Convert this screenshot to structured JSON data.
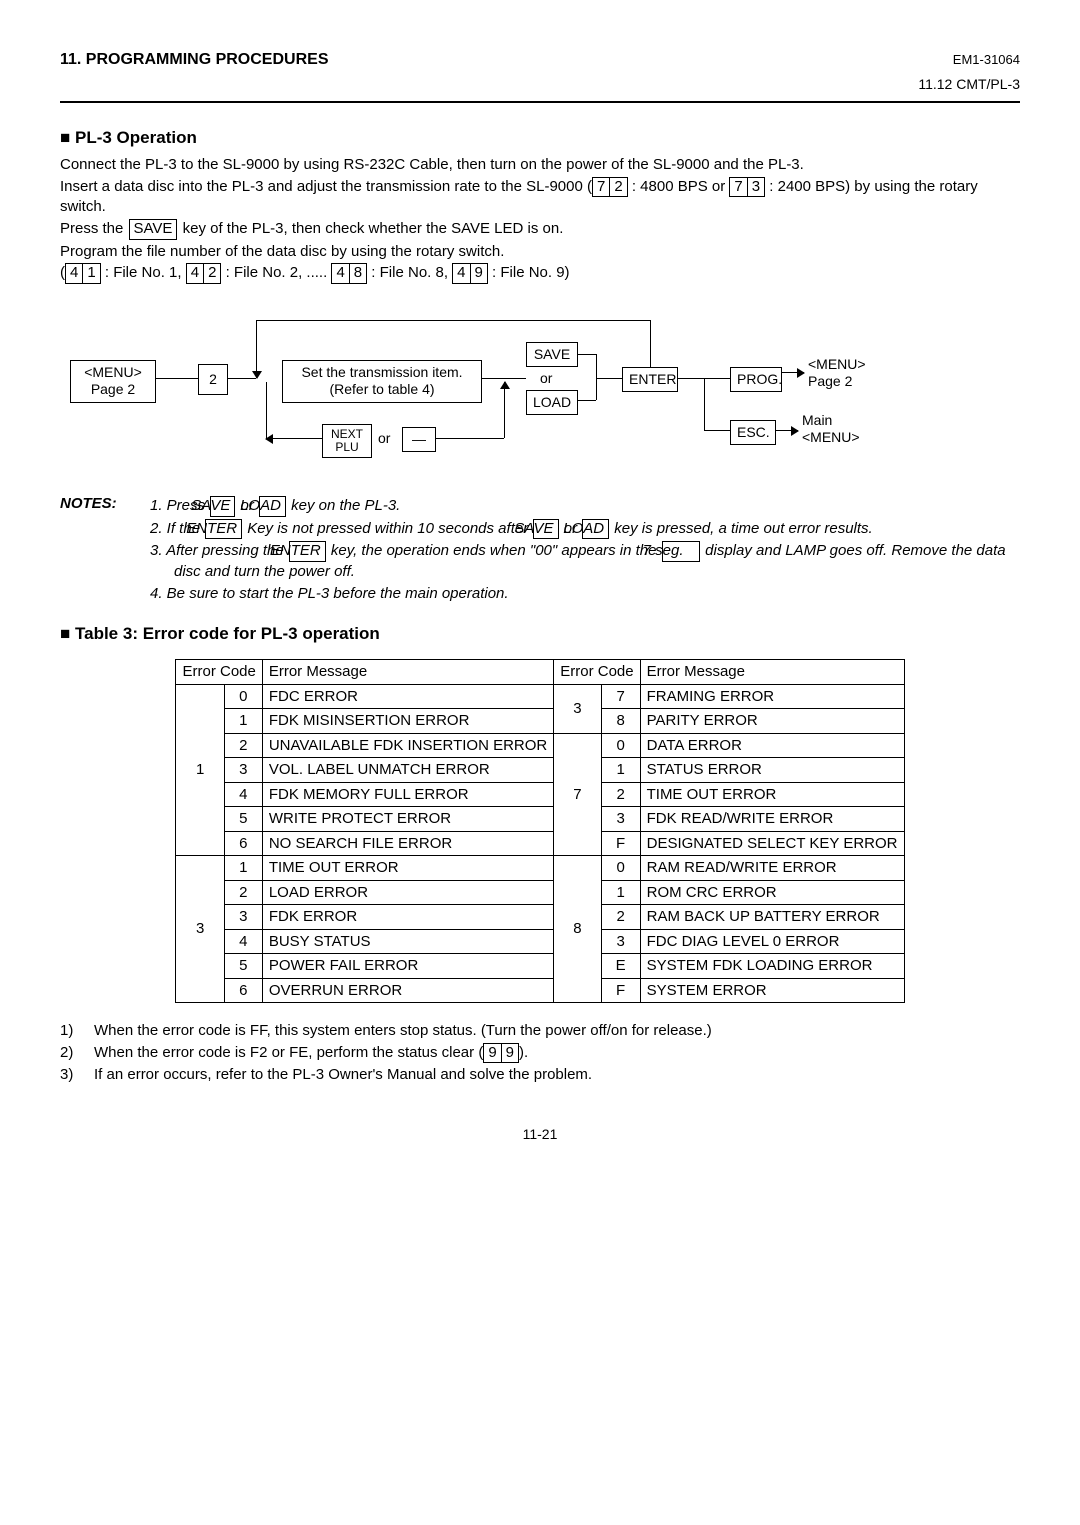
{
  "header": {
    "left": "11. PROGRAMMING PROCEDURES",
    "doc_no": "EM1-31064",
    "sub": "11.12 CMT/PL-3"
  },
  "op_title": "PL-3 Operation",
  "op": {
    "p1": "Connect the PL-3 to the SL-9000 by using RS-232C Cable, then turn on the power of the SL-9000 and the PL-3.",
    "p2a": "Insert a data disc into the PL-3 and adjust the transmission rate to the SL-9000 (",
    "p2_72": [
      "7",
      "2"
    ],
    "p2b": " :  4800 BPS or ",
    "p2_73": [
      "7",
      "3"
    ],
    "p2c": " :  2400 BPS) by using the rotary switch.",
    "p3a": "Press the ",
    "p3_save": " SAVE ",
    "p3b": " key of the PL-3, then check whether the SAVE LED is on.",
    "p4": "Program the file number of the data disc by using the rotary switch.",
    "p5a": "(",
    "p5_41": [
      "4",
      "1"
    ],
    "p5b": " :  File No. 1, ",
    "p5_42": [
      "4",
      "2"
    ],
    "p5c": " :  File No. 2, ..... ",
    "p5_48": [
      "4",
      "8"
    ],
    "p5d": " :  File No. 8, ",
    "p5_49": [
      "4",
      "9"
    ],
    "p5e": " :  File No. 9)"
  },
  "diagram": {
    "menu_p2": "<MENU>\nPage 2",
    "two": "2",
    "set_item": "Set the transmission item.\n(Refer to table 4)",
    "save": "SAVE",
    "or": "or",
    "load": "LOAD",
    "enter": "ENTER",
    "prog": "PROG.",
    "esc": "ESC.",
    "menu_p2r": "<MENU>\nPage 2",
    "main_menu": "Main\n<MENU>",
    "next_plu": "NEXT\nPLU",
    "dash": "—"
  },
  "notes_label": "NOTES:",
  "notes": {
    "n1a": "1.  Press ",
    "n1_save": "SAVE",
    "n1b": " or ",
    "n1_load": "LOAD",
    "n1c": " key on the PL-3.",
    "n2a": "2.  If the ",
    "n2_enter": "ENTER",
    "n2b": " Key is not pressed within 10 seconds after ",
    "n2_save": "SAVE",
    "n2c": " or ",
    "n2_load": "LOAD",
    "n2d": " key is pressed, a time out error results.",
    "n3a": "3.  After pressing the ",
    "n3_enter": "ENTER",
    "n3b": " key, the operation ends when \"00\" appears in the ",
    "n3_7seg": "7 seg.",
    "n3c": " display and LAMP goes off.  Remove the data disc and turn the power off.",
    "n4": "4.  Be sure to start the PL-3 before the main operation."
  },
  "table_title": "Table 3:  Error code for PL-3 operation",
  "table": {
    "hdr_code": "Error Code",
    "hdr_msg": "Error Message",
    "left": [
      {
        "g": "1",
        "rows": [
          [
            "0",
            "FDC ERROR"
          ],
          [
            "1",
            "FDK MISINSERTION ERROR"
          ],
          [
            "2",
            "UNAVAILABLE FDK INSERTION ERROR"
          ],
          [
            "3",
            "VOL. LABEL UNMATCH ERROR"
          ],
          [
            "4",
            "FDK MEMORY FULL ERROR"
          ],
          [
            "5",
            "WRITE PROTECT ERROR"
          ],
          [
            "6",
            "NO SEARCH FILE ERROR"
          ]
        ]
      },
      {
        "g": "3",
        "rows": [
          [
            "1",
            "TIME OUT ERROR"
          ],
          [
            "2",
            "LOAD ERROR"
          ],
          [
            "3",
            "FDK ERROR"
          ],
          [
            "4",
            "BUSY STATUS"
          ],
          [
            "5",
            "POWER FAIL ERROR"
          ],
          [
            "6",
            "OVERRUN ERROR"
          ]
        ]
      }
    ],
    "right": [
      {
        "g": "3",
        "rows": [
          [
            "7",
            "FRAMING ERROR"
          ],
          [
            "8",
            "PARITY ERROR"
          ]
        ]
      },
      {
        "g": "7",
        "rows": [
          [
            "0",
            "DATA ERROR"
          ],
          [
            "1",
            "STATUS ERROR"
          ],
          [
            "2",
            "TIME OUT ERROR"
          ],
          [
            "3",
            "FDK READ/WRITE ERROR"
          ],
          [
            "F",
            "DESIGNATED SELECT KEY ERROR"
          ]
        ]
      },
      {
        "g": "8",
        "rows": [
          [
            "0",
            "RAM READ/WRITE ERROR"
          ],
          [
            "1",
            "ROM CRC ERROR"
          ],
          [
            "2",
            "RAM BACK UP BATTERY ERROR"
          ],
          [
            "3",
            "FDC DIAG LEVEL 0 ERROR"
          ],
          [
            "E",
            "SYSTEM FDK LOADING ERROR"
          ],
          [
            "F",
            "SYSTEM ERROR"
          ]
        ]
      }
    ]
  },
  "foot": {
    "f1": "When the error code is FF, this system enters stop status.  (Turn the power off/on for release.)",
    "f2a": "When the error code is F2 or FE, perform the status clear (",
    "f2_99": [
      "9",
      "9"
    ],
    "f2b": ").",
    "f3": "If an error occurs, refer to the PL-3 Owner's Manual and solve the problem."
  },
  "page_num": "11-21"
}
